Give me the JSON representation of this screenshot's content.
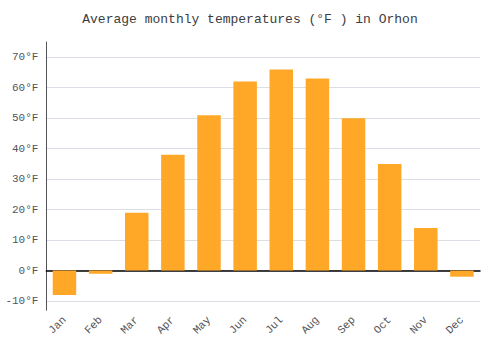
{
  "chart_data": {
    "type": "bar",
    "title": "Average monthly temperatures (°F ) in Orhon",
    "categories": [
      "Jan",
      "Feb",
      "Mar",
      "Apr",
      "May",
      "Jun",
      "Jul",
      "Aug",
      "Sep",
      "Oct",
      "Nov",
      "Dec"
    ],
    "values": [
      -8,
      -1,
      19,
      38,
      51,
      62,
      66,
      63,
      50,
      35,
      14,
      -2
    ],
    "color": "#FFA726",
    "ylim": [
      -13,
      75
    ],
    "yticks": [
      {
        "value": -10,
        "label": "-10°F"
      },
      {
        "value": 0,
        "label": "0°F"
      },
      {
        "value": 10,
        "label": "10°F"
      },
      {
        "value": 20,
        "label": "20°F"
      },
      {
        "value": 30,
        "label": "30°F"
      },
      {
        "value": 40,
        "label": "40°F"
      },
      {
        "value": 50,
        "label": "50°F"
      },
      {
        "value": 60,
        "label": "60°F"
      },
      {
        "value": 70,
        "label": "70°F"
      }
    ],
    "grid": true
  }
}
